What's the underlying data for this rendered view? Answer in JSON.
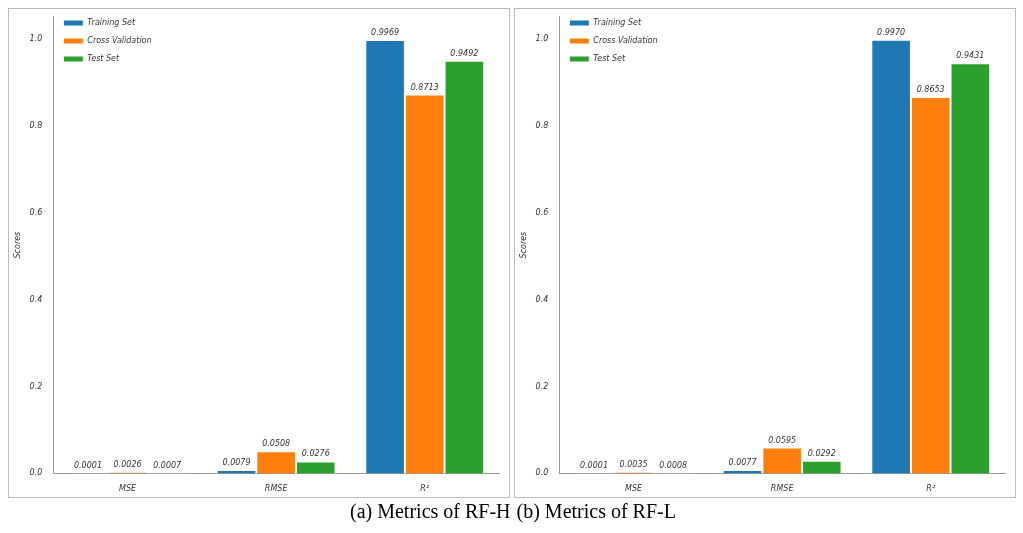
{
  "chart_data": [
    {
      "type": "bar",
      "ylabel": "Scores",
      "categories": [
        "MSE",
        "RMSE",
        "R²"
      ],
      "ylim": [
        0,
        1.05
      ],
      "yticks": [
        {
          "value": 0,
          "label": "0.0"
        },
        {
          "value": 0.2,
          "label": "0.2"
        },
        {
          "value": 0.4,
          "label": "0.4"
        },
        {
          "value": 0.6,
          "label": "0.6"
        },
        {
          "value": 0.8,
          "label": "0.8"
        },
        {
          "value": 1,
          "label": "1.0"
        }
      ],
      "grid": false,
      "legend": "top left",
      "annotations": [
        "(a) Metrics of RF-H"
      ],
      "series": [
        {
          "name": "Training Set",
          "color": "#1f77b4",
          "values": [
            0.0001,
            0.0079,
            0.9969
          ],
          "value_labels": [
            "0.0001",
            "0.0079",
            "0.9969"
          ]
        },
        {
          "name": "Cross Validation",
          "color": "#ff7f0e",
          "values": [
            0.0026,
            0.0508,
            0.8713
          ],
          "value_labels": [
            "0.0026",
            "0.0508",
            "0.8713"
          ]
        },
        {
          "name": "Test Set",
          "color": "#2ca02c",
          "values": [
            0.0007,
            0.0276,
            0.9492
          ],
          "value_labels": [
            "0.0007",
            "0.0276",
            "0.9492"
          ]
        }
      ]
    },
    {
      "type": "bar",
      "ylabel": "Scores",
      "categories": [
        "MSE",
        "RMSE",
        "R²"
      ],
      "ylim": [
        0,
        1.05
      ],
      "yticks": [
        {
          "value": 0,
          "label": "0.0"
        },
        {
          "value": 0.2,
          "label": "0.2"
        },
        {
          "value": 0.4,
          "label": "0.4"
        },
        {
          "value": 0.6,
          "label": "0.6"
        },
        {
          "value": 0.8,
          "label": "0.8"
        },
        {
          "value": 1,
          "label": "1.0"
        }
      ],
      "grid": false,
      "legend": "top left",
      "annotations": [
        "(b) Metrics of RF-L"
      ],
      "series": [
        {
          "name": "Training Set",
          "color": "#1f77b4",
          "values": [
            0.0001,
            0.0077,
            0.997
          ],
          "value_labels": [
            "0.0001",
            "0.0077",
            "0.9970"
          ]
        },
        {
          "name": "Cross Validation",
          "color": "#ff7f0e",
          "values": [
            0.0035,
            0.0595,
            0.8653
          ],
          "value_labels": [
            "0.0035",
            "0.0595",
            "0.8653"
          ]
        },
        {
          "name": "Test Set",
          "color": "#2ca02c",
          "values": [
            0.0008,
            0.0292,
            0.9431
          ],
          "value_labels": [
            "0.0008",
            "0.0292",
            "0.9431"
          ]
        }
      ]
    }
  ]
}
